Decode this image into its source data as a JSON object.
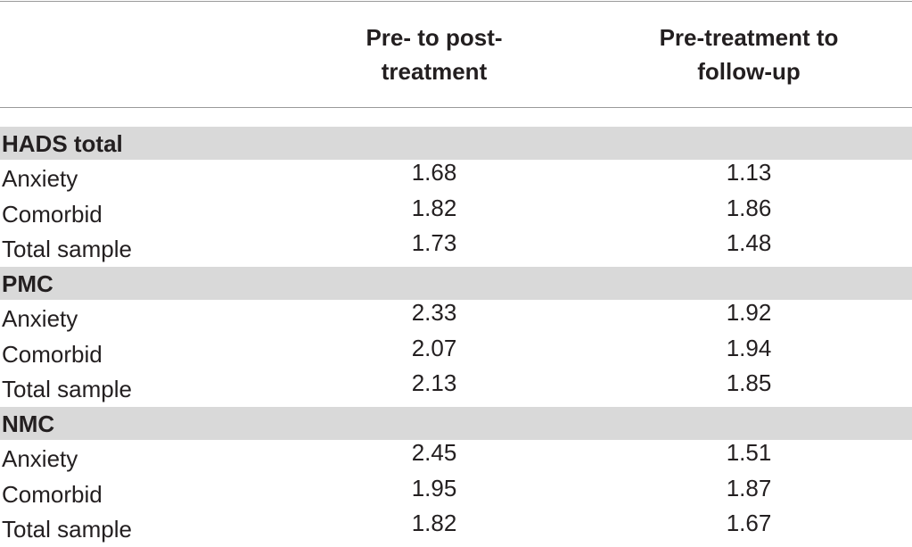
{
  "table": {
    "header": [
      [
        "Pre- to post-",
        "treatment"
      ],
      [
        "Pre-treatment to",
        "follow-up"
      ]
    ],
    "sections": [
      {
        "title": "HADS total",
        "rows": [
          {
            "label": "Anxiety",
            "values": [
              1.68,
              1.13
            ]
          },
          {
            "label": "Comorbid",
            "values": [
              1.82,
              1.86
            ]
          },
          {
            "label": "Total sample",
            "values": [
              1.73,
              1.48
            ]
          }
        ]
      },
      {
        "title": "PMC",
        "rows": [
          {
            "label": "Anxiety",
            "values": [
              2.33,
              1.92
            ]
          },
          {
            "label": "Comorbid",
            "values": [
              2.07,
              1.94
            ]
          },
          {
            "label": "Total sample",
            "values": [
              2.13,
              1.85
            ]
          }
        ]
      },
      {
        "title": "NMC",
        "rows": [
          {
            "label": "Anxiety",
            "values": [
              2.45,
              1.51
            ]
          },
          {
            "label": "Comorbid",
            "values": [
              1.95,
              1.87
            ]
          },
          {
            "label": "Total sample",
            "values": [
              1.82,
              1.67
            ]
          }
        ]
      }
    ]
  }
}
